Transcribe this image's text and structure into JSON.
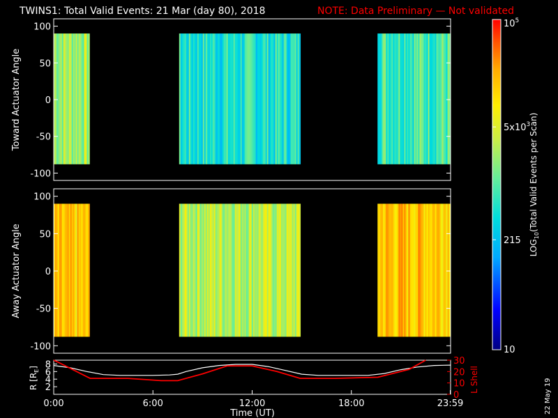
{
  "title": "TWINS1: Total Valid Events: 21 Mar (day  80), 2018",
  "note": "NOTE: Data Preliminary — Not validated",
  "colors": {
    "background": "#000000",
    "foreground": "#ffffff",
    "note": "#ff0000",
    "r_line": "#ffffff",
    "l_line": "#ff0000",
    "colormap": [
      "#000080",
      "#0000ff",
      "#00aaff",
      "#00dddd",
      "#66ee99",
      "#ccee44",
      "#ffee00",
      "#ffaa00",
      "#ff5500",
      "#ff0000"
    ]
  },
  "chart_data": [
    {
      "type": "heatmap",
      "panel": "toward",
      "ylabel": "Toward Actuator Angle",
      "ylim": [
        -110,
        110
      ],
      "yticks": [
        100,
        50,
        0,
        -50,
        -100
      ],
      "xlim": [
        0,
        24
      ],
      "angle_range": [
        -88,
        90
      ],
      "data_blocks": [
        {
          "start": "0:00",
          "end": "2:10",
          "level": 0.52
        },
        {
          "start": "7:35",
          "end": "14:55",
          "level": 0.36
        },
        {
          "start": "19:35",
          "end": "23:59",
          "level": 0.42
        }
      ]
    },
    {
      "type": "heatmap",
      "panel": "away",
      "ylabel": "Away Actuator Angle",
      "ylim": [
        -110,
        110
      ],
      "yticks": [
        100,
        50,
        0,
        -50,
        -100
      ],
      "xlim": [
        0,
        24
      ],
      "angle_range": [
        -88,
        90
      ],
      "data_blocks": [
        {
          "start": "0:00",
          "end": "2:10",
          "level": 0.7
        },
        {
          "start": "7:35",
          "end": "14:55",
          "level": 0.55
        },
        {
          "start": "19:35",
          "end": "23:59",
          "level": 0.74
        }
      ]
    },
    {
      "type": "line",
      "panel": "orbit",
      "ylabel_left": "R [R",
      "ylabel_left_sub": "E",
      "ylabel_left_end": "]",
      "ylabel_right": "L Shell",
      "yticks_left": [
        "8",
        "6",
        "4",
        "2"
      ],
      "yticks_right": [
        "30",
        "20",
        "10",
        "0"
      ],
      "ylim_left": [
        0,
        9
      ],
      "ylim_right": [
        0,
        30
      ],
      "xlabel": "Time (UT)",
      "xticks": [
        "0:00",
        "6:00",
        "12:00",
        "18:00",
        "23:59"
      ],
      "xlim": [
        0,
        24
      ],
      "series": [
        {
          "axis": "left",
          "x": [
            0,
            1,
            2,
            3,
            4,
            5,
            6,
            7,
            7.5,
            8,
            9,
            10,
            11,
            12,
            13,
            14,
            15,
            16,
            17,
            18,
            19,
            20,
            21,
            22,
            23,
            24
          ],
          "y": [
            7.6,
            7.0,
            6.0,
            5.2,
            5.0,
            5.0,
            5.0,
            5.1,
            5.3,
            6.0,
            7.0,
            7.6,
            7.9,
            7.9,
            7.3,
            6.3,
            5.3,
            5.0,
            5.0,
            5.0,
            5.0,
            5.5,
            6.5,
            7.2,
            7.6,
            7.7
          ]
        },
        {
          "axis": "right",
          "x": [
            0,
            0.3,
            2.2,
            4.5,
            6.5,
            7.5,
            9,
            10.5,
            12,
            13.5,
            14.9,
            17,
            19.6,
            21.5,
            22.5
          ],
          "y": [
            30,
            28,
            14,
            14,
            12,
            12,
            18,
            25,
            25,
            20,
            14,
            14,
            15,
            22,
            30
          ]
        }
      ]
    },
    {
      "type": "colorbar",
      "ylabel": "LOG",
      "ylabel_sub": "10",
      "ylabel_end": "(Total Valid  Events per Scan)",
      "ticks": [
        {
          "value": 100000,
          "base": "10",
          "exp": "5"
        },
        {
          "value": 5000,
          "base": "5x10",
          "exp": "3"
        },
        {
          "value": 215,
          "label": "215"
        },
        {
          "value": 10,
          "label": "10"
        }
      ],
      "range": [
        10,
        100000
      ]
    }
  ],
  "footer_date": "22 May 19"
}
